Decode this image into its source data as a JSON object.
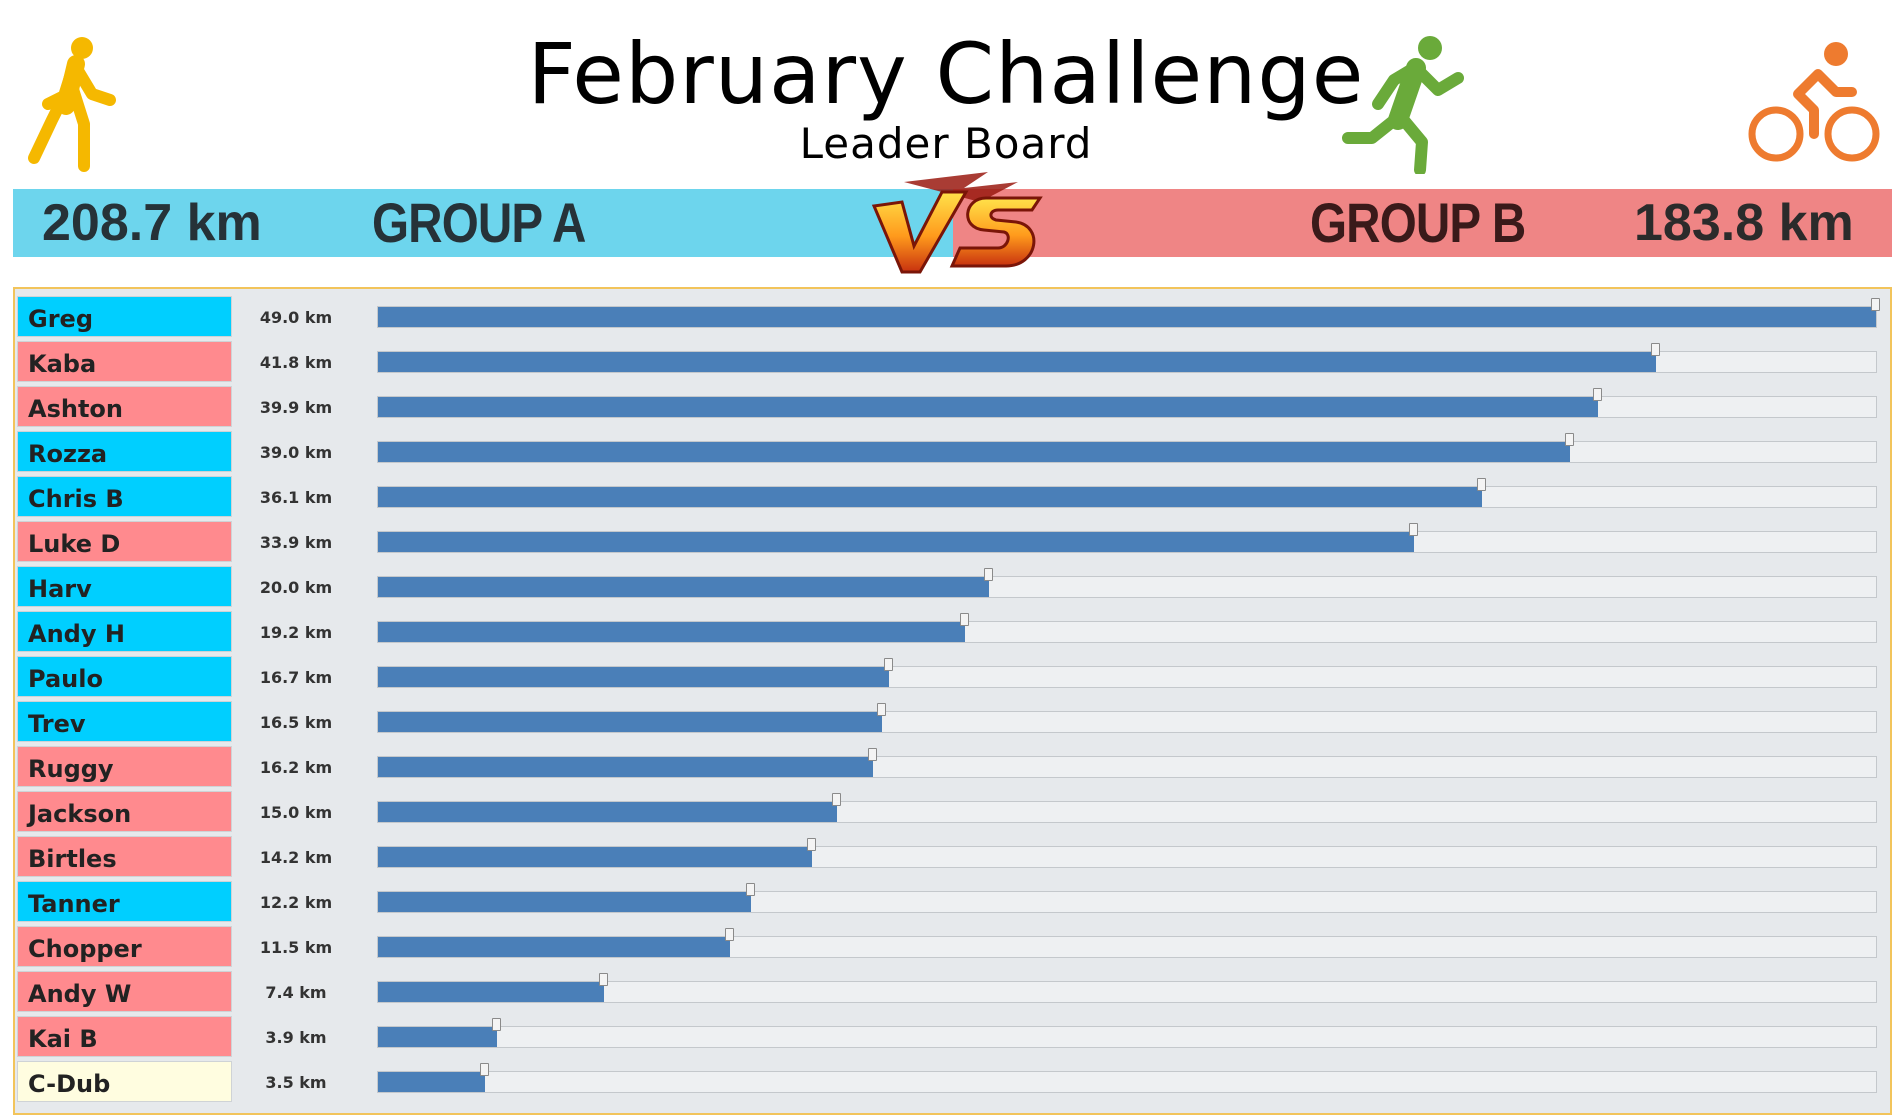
{
  "header": {
    "title": "February Challenge",
    "subtitle": "Leader Board",
    "icons": [
      "walking-person-icon",
      "running-person-icon",
      "cyclist-icon"
    ],
    "colors": {
      "walk": "#f5b800",
      "run": "#6aaa3a",
      "bike": "#ee7b2f"
    }
  },
  "score": {
    "group_a": {
      "name": "GROUP A",
      "total": "208.7 km",
      "color": "#6dd5ed"
    },
    "group_b": {
      "name": "GROUP B",
      "total": "183.8 km",
      "color": "#ef8585"
    },
    "vs_icon": "vs-badge-icon"
  },
  "leaderboard": {
    "max_km": 49.0,
    "bar_color": "#4a7fb8",
    "group_colors": {
      "A": "#00cfff",
      "B": "#ff8a8e",
      "N": "#fffde0"
    },
    "rows": [
      {
        "name": "Greg",
        "km_label": "49.0 km",
        "km": 49.0,
        "group": "A"
      },
      {
        "name": "Kaba",
        "km_label": "41.8 km",
        "km": 41.8,
        "group": "B"
      },
      {
        "name": "Ashton",
        "km_label": "39.9 km",
        "km": 39.9,
        "group": "B"
      },
      {
        "name": "Rozza",
        "km_label": "39.0 km",
        "km": 39.0,
        "group": "A"
      },
      {
        "name": "Chris B",
        "km_label": "36.1 km",
        "km": 36.1,
        "group": "A"
      },
      {
        "name": "Luke D",
        "km_label": "33.9 km",
        "km": 33.9,
        "group": "B"
      },
      {
        "name": "Harv",
        "km_label": "20.0 km",
        "km": 20.0,
        "group": "A"
      },
      {
        "name": "Andy H",
        "km_label": "19.2 km",
        "km": 19.2,
        "group": "A"
      },
      {
        "name": "Paulo",
        "km_label": "16.7 km",
        "km": 16.7,
        "group": "A"
      },
      {
        "name": "Trev",
        "km_label": "16.5 km",
        "km": 16.5,
        "group": "A"
      },
      {
        "name": "Ruggy",
        "km_label": "16.2 km",
        "km": 16.2,
        "group": "B"
      },
      {
        "name": "Jackson",
        "km_label": "15.0 km",
        "km": 15.0,
        "group": "B"
      },
      {
        "name": "Birtles",
        "km_label": "14.2 km",
        "km": 14.2,
        "group": "B"
      },
      {
        "name": "Tanner",
        "km_label": "12.2 km",
        "km": 12.2,
        "group": "A"
      },
      {
        "name": "Chopper",
        "km_label": "11.5 km",
        "km": 11.5,
        "group": "B"
      },
      {
        "name": "Andy W",
        "km_label": "7.4 km",
        "km": 7.4,
        "group": "B"
      },
      {
        "name": "Kai B",
        "km_label": "3.9 km",
        "km": 3.9,
        "group": "B"
      },
      {
        "name": "C-Dub",
        "km_label": "3.5 km",
        "km": 3.5,
        "group": "N"
      }
    ]
  }
}
